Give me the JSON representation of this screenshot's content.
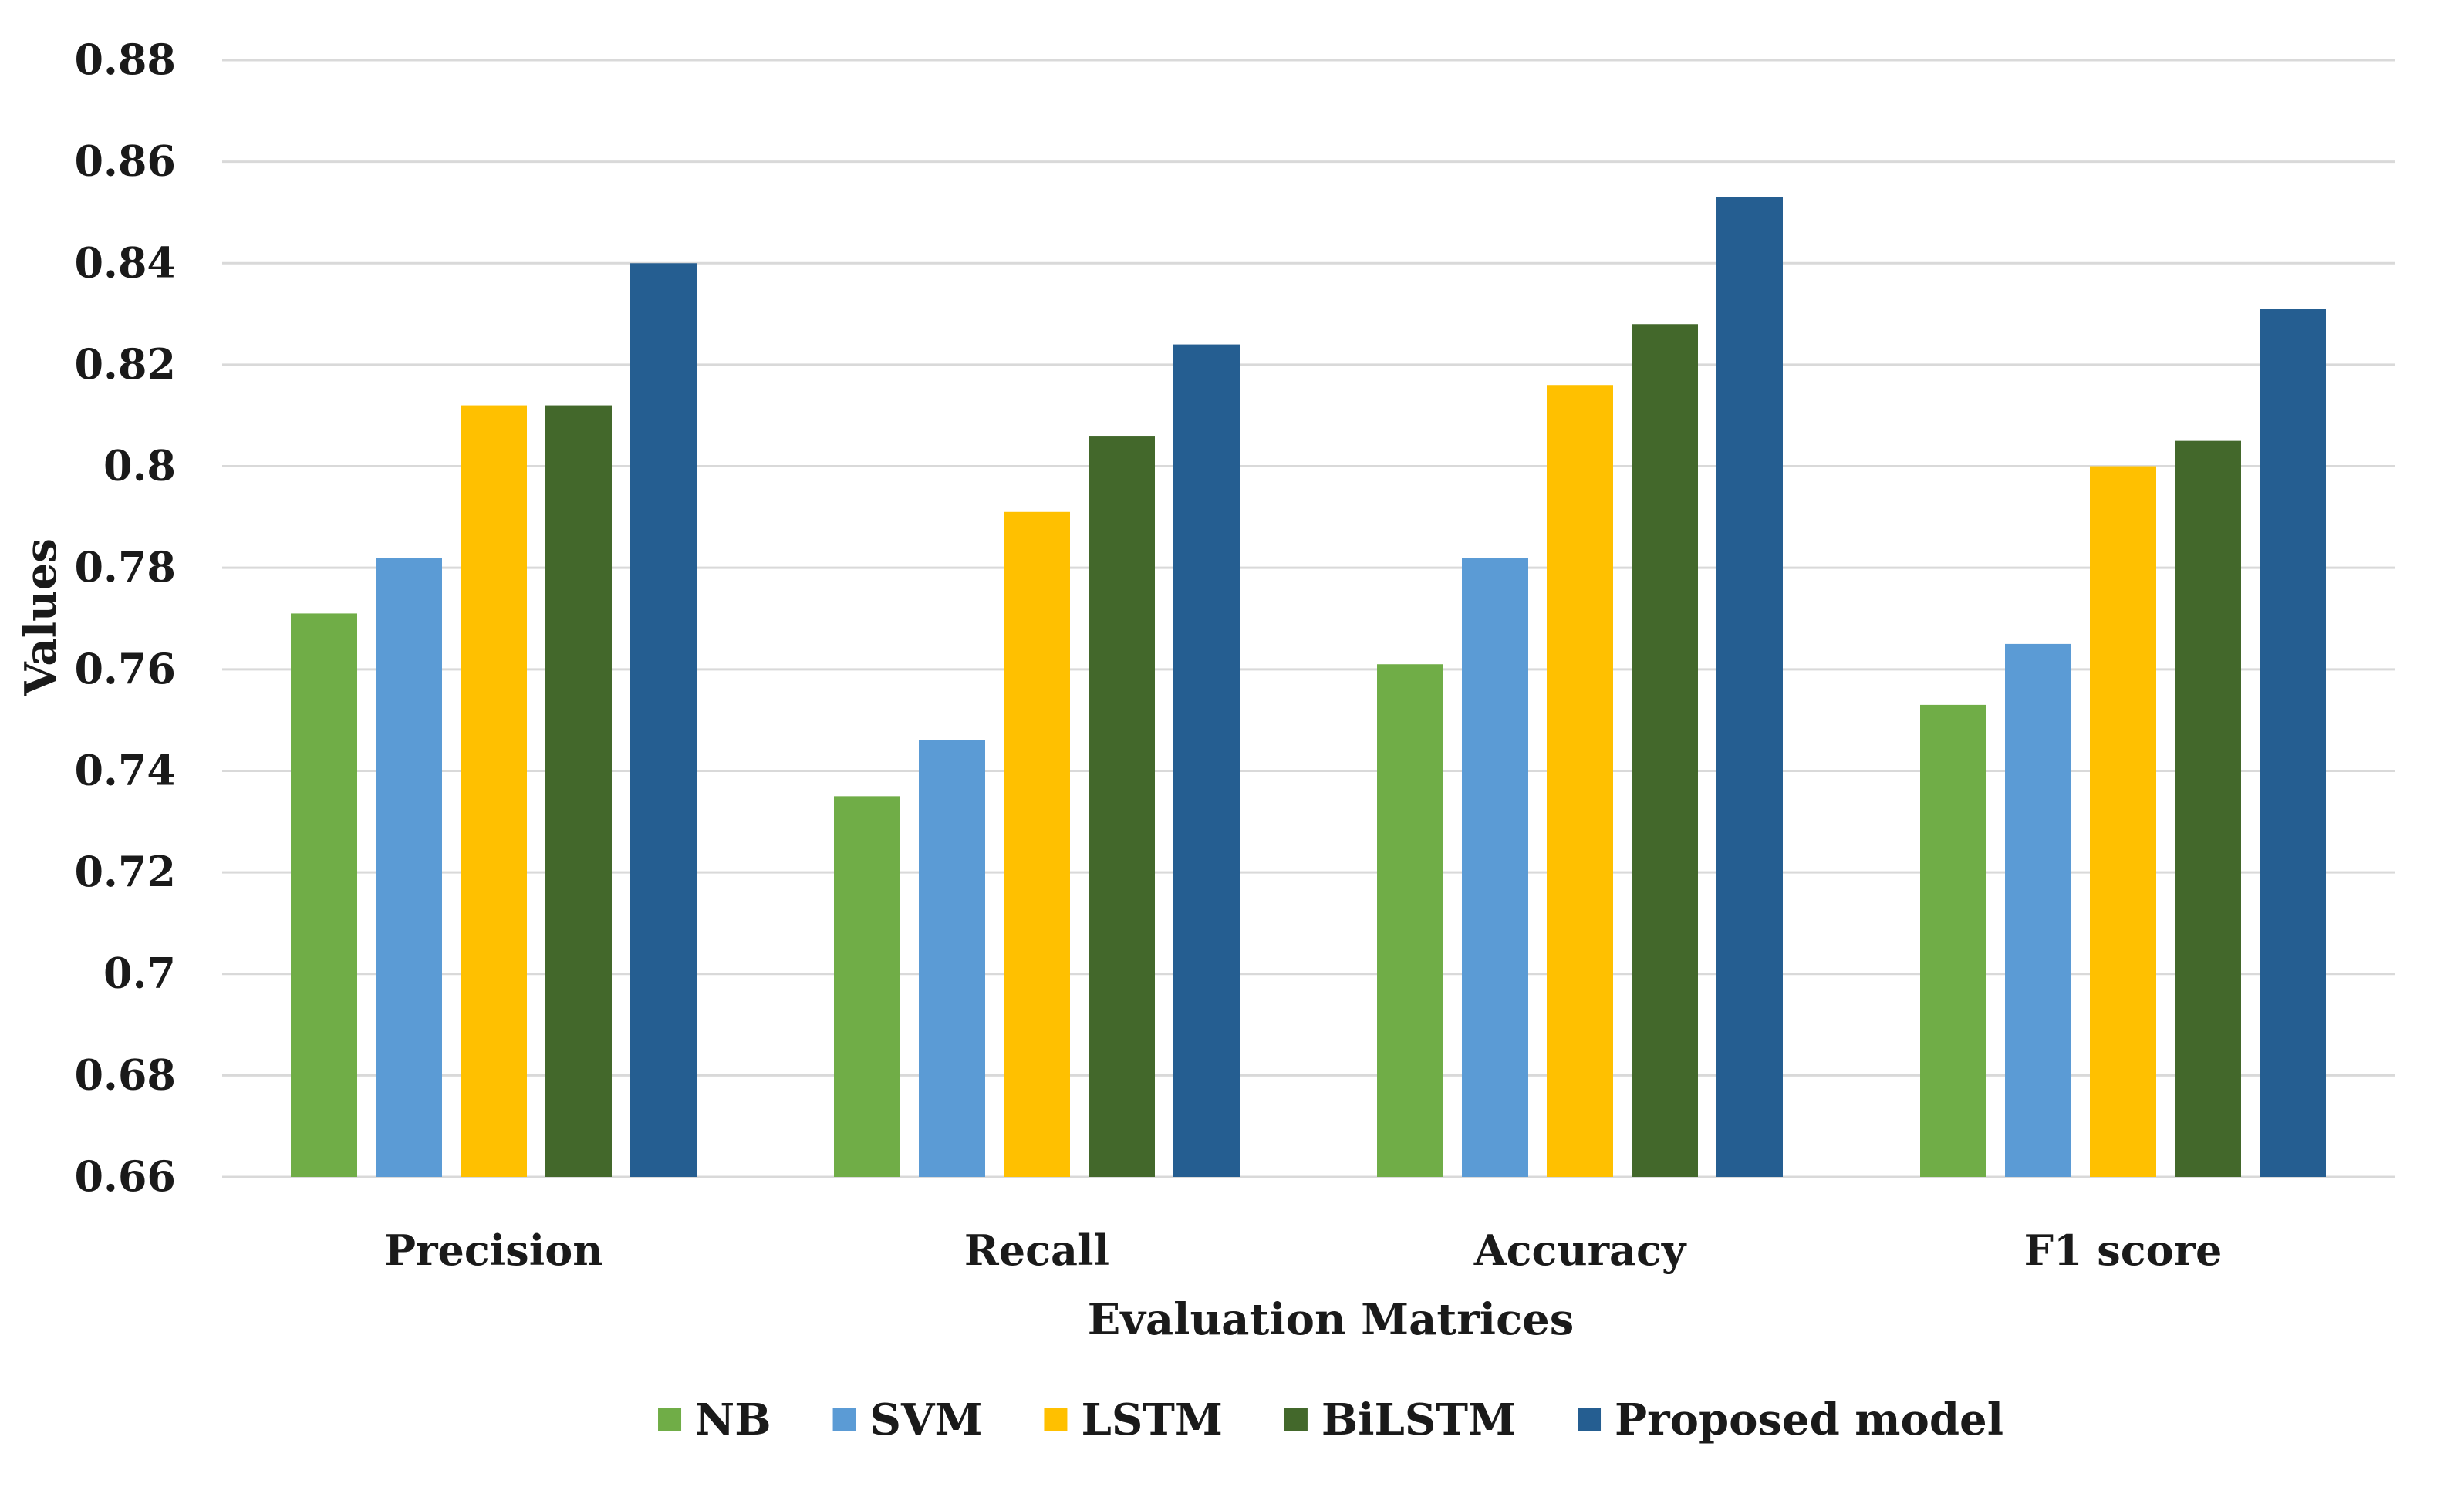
{
  "chart_data": {
    "type": "bar",
    "title": "",
    "xlabel": "Evaluation Matrices",
    "ylabel": "Values",
    "ylim": [
      0.66,
      0.88
    ],
    "yticks": [
      "0.66",
      "0.68",
      "0.7",
      "0.72",
      "0.74",
      "0.76",
      "0.78",
      "0.8",
      "0.82",
      "0.84",
      "0.86",
      "0.88"
    ],
    "ytick_values": [
      0.66,
      0.68,
      0.7,
      0.72,
      0.74,
      0.76,
      0.78,
      0.8,
      0.82,
      0.84,
      0.86,
      0.88
    ],
    "grid": true,
    "legend_position": "bottom",
    "categories": [
      "Precision",
      "Recall",
      "Accuracy",
      "F1 score"
    ],
    "series": [
      {
        "name": "NB",
        "color": "#70AD47",
        "values": [
          0.771,
          0.735,
          0.761,
          0.753
        ]
      },
      {
        "name": "SVM",
        "color": "#5B9BD5",
        "values": [
          0.782,
          0.746,
          0.782,
          0.765
        ]
      },
      {
        "name": "LSTM",
        "color": "#FFC000",
        "values": [
          0.812,
          0.791,
          0.816,
          0.8
        ]
      },
      {
        "name": "BiLSTM",
        "color": "#43682B",
        "values": [
          0.812,
          0.806,
          0.828,
          0.805
        ]
      },
      {
        "name": "Proposed model",
        "color": "#255E91",
        "values": [
          0.84,
          0.824,
          0.853,
          0.831
        ]
      }
    ]
  }
}
